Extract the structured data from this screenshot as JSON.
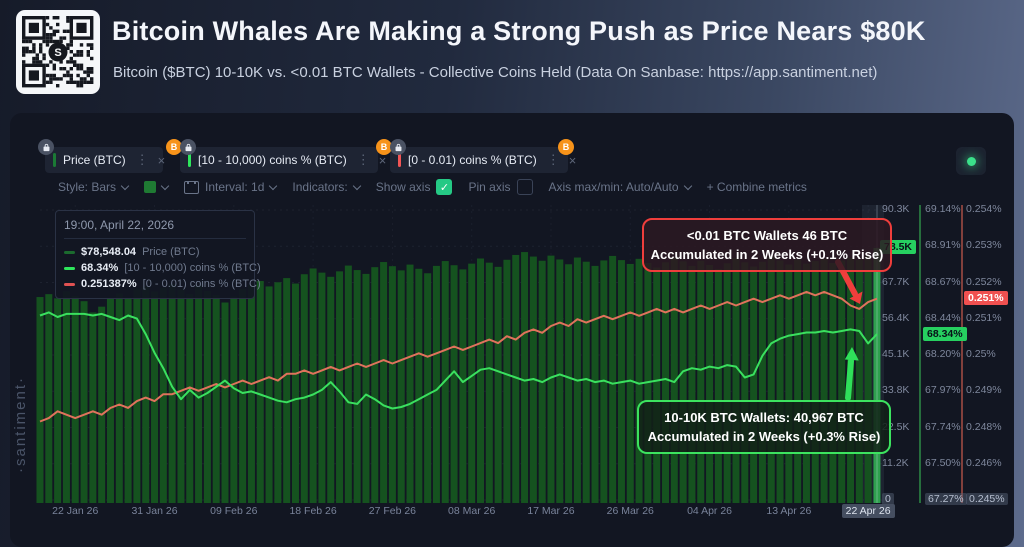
{
  "header": {
    "title": "Bitcoin Whales Are Making a Strong Push as Price Nears $80K",
    "subtitle": "Bitcoin ($BTC) 10-10K vs. <0.01 BTC Wallets - Collective Coins Held (Data On Sanbase: https://app.santiment.net)"
  },
  "icons": {
    "menu_dots": "⋮",
    "close": "×",
    "check": "✓",
    "btc": "B",
    "logo_s": "S"
  },
  "toolbar": {
    "metrics": [
      {
        "label": "Price (BTC)",
        "color": "#1b7a35",
        "locked": true,
        "btc_badge": false
      },
      {
        "label": "[10 - 10,000) coins % (BTC)",
        "color": "#2ee65c",
        "locked": true,
        "btc_badge": true
      },
      {
        "label": "[0 - 0.01) coins % (BTC)",
        "color": "#f25555",
        "locked": true,
        "btc_badge": true
      }
    ]
  },
  "controls": {
    "style_label": "Style: Bars",
    "interval_label": "Interval: 1d",
    "indicators_label": "Indicators:",
    "show_axis_label": "Show axis",
    "pin_axis_label": "Pin axis",
    "axis_maxmin_label": "Axis max/min: Auto/Auto",
    "combine_label": "+ Combine metrics",
    "show_axis_checked": true,
    "pin_axis_checked": false
  },
  "tooltip": {
    "timestamp": "19:00, April 22, 2026",
    "rows": [
      {
        "value": "$78,548.04",
        "label": "Price (BTC)",
        "color": "#1b6b2e"
      },
      {
        "value": "68.34%",
        "label": "[10 - 10,000) coins % (BTC)",
        "color": "#2ee65c"
      },
      {
        "value": "0.251387%",
        "label": "[0 - 0.01) coins % (BTC)",
        "color": "#e05252"
      }
    ]
  },
  "annotations": {
    "red": {
      "line1": "<0.01 BTC Wallets 46 BTC",
      "line2": "Accumulated in 2 Weeks (+0.1% Rise)",
      "color": "#ef3e3c"
    },
    "green": {
      "line1": "10-10K BTC Wallets: 40,967 BTC",
      "line2": "Accumulated in 2 Weeks (+0.3% Rise)",
      "color": "#3ce35f"
    }
  },
  "watermark": "·santiment·",
  "axes": {
    "price": {
      "ticks": [
        "90.3K",
        null,
        "67.7K",
        "56.4K",
        "45.1K",
        "33.8K",
        "22.5K",
        "11.2K",
        "0"
      ],
      "current_label": "78.5K"
    },
    "green": {
      "ticks": [
        "69.14%",
        "68.91%",
        "68.67%",
        "68.44%",
        "68.20%",
        "67.97%",
        "67.74%",
        "67.50%",
        "67.27%"
      ],
      "current_label": "68.34%"
    },
    "red": {
      "ticks": [
        "0.254%",
        "0.253%",
        "0.252%",
        "0.251%",
        "0.25%",
        "0.249%",
        "0.248%",
        "0.246%",
        "0.245%"
      ],
      "current_label": "0.251%"
    }
  },
  "x_axis": {
    "ticks": [
      "22 Jan 26",
      "31 Jan 26",
      "09 Feb 26",
      "18 Feb 26",
      "27 Feb 26",
      "08 Mar 26",
      "17 Mar 26",
      "26 Mar 26",
      "04 Apr 26",
      "13 Apr 26",
      "22 Apr 26"
    ],
    "highlighted_tick": "22 Apr 26"
  },
  "chart_data": {
    "type": "combo",
    "title": "Bitcoin ($BTC) 10-10K vs. <0.01 BTC Wallets - Collective Coins Held",
    "interval": "1d",
    "x_start": "18 Jan 26",
    "x_end": "23 Apr 26",
    "tick_day_offset": 4,
    "tick_day_step": 9,
    "legend_position": "top-left tooltip",
    "grid": "dotted",
    "series": [
      {
        "name": "Price (BTC)",
        "type": "bar",
        "unit": "K USD",
        "ylim": [
          0,
          90.3
        ],
        "color": "#15521f",
        "values": [
          63.2,
          64.1,
          62.8,
          65.0,
          63.5,
          61.9,
          58.4,
          60.2,
          62.7,
          64.3,
          63.0,
          65.8,
          66.4,
          64.9,
          66.1,
          67.3,
          65.5,
          64.2,
          66.8,
          65.1,
          63.9,
          61.5,
          63.3,
          65.7,
          67.0,
          68.2,
          66.5,
          67.8,
          69.1,
          67.4,
          70.3,
          72.1,
          70.8,
          69.5,
          71.2,
          73.0,
          71.6,
          70.4,
          72.5,
          74.1,
          72.8,
          71.5,
          73.3,
          72.0,
          70.6,
          72.9,
          74.4,
          73.1,
          71.8,
          73.6,
          75.2,
          73.9,
          72.6,
          74.8,
          76.3,
          77.2,
          75.8,
          74.5,
          76.1,
          74.9,
          73.4,
          75.5,
          74.2,
          72.9,
          74.6,
          76.0,
          74.7,
          73.5,
          75.1,
          73.8,
          72.4,
          74.0,
          75.6,
          74.3,
          72.9,
          74.5,
          73.2,
          71.9,
          73.7,
          75.3,
          74.0,
          72.7,
          74.2,
          75.8,
          74.6,
          73.3,
          74.9,
          73.6,
          74.4,
          75.0,
          73.8,
          74.6,
          75.4,
          74.8,
          76.2,
          78.5
        ]
      },
      {
        "name": "[10 - 10,000) coins % (BTC)",
        "type": "line",
        "unit": "%",
        "ylim": [
          67.27,
          69.14
        ],
        "color": "#3ae05f",
        "values": [
          68.46,
          68.48,
          68.45,
          68.47,
          68.47,
          68.47,
          68.46,
          68.47,
          68.45,
          68.43,
          68.46,
          68.44,
          68.34,
          68.22,
          68.12,
          68.0,
          67.92,
          67.98,
          67.93,
          67.96,
          68.0,
          68.04,
          67.99,
          67.96,
          67.97,
          67.95,
          67.93,
          67.91,
          67.9,
          67.92,
          67.93,
          67.95,
          67.98,
          68.03,
          67.97,
          67.9,
          67.89,
          67.95,
          67.92,
          67.88,
          67.86,
          67.87,
          67.89,
          67.92,
          67.95,
          67.98,
          68.04,
          68.1,
          68.03,
          68.07,
          68.11,
          68.12,
          68.1,
          68.08,
          68.06,
          68.04,
          68.05,
          68.03,
          68.06,
          68.08,
          68.06,
          68.04,
          68.05,
          68.03,
          68.04,
          68.02,
          68.03,
          68.04,
          68.02,
          68.03,
          68.04,
          68.05,
          68.03,
          68.1,
          68.12,
          68.11,
          68.13,
          68.12,
          68.14,
          68.13,
          68.06,
          68.08,
          68.2,
          68.28,
          68.31,
          68.33,
          68.34,
          68.35,
          68.35,
          68.36,
          68.35,
          68.36,
          68.37,
          68.36,
          68.28,
          68.34
        ]
      },
      {
        "name": "[0 - 0.01) coins % (BTC)",
        "type": "line",
        "unit": "%",
        "ylim": [
          0.2455,
          0.254
        ],
        "color": "#e0735c",
        "values": [
          0.2478,
          0.2479,
          0.2481,
          0.248,
          0.2479,
          0.248,
          0.2481,
          0.248,
          0.2482,
          0.2483,
          0.2482,
          0.2484,
          0.2485,
          0.2484,
          0.2486,
          0.2486,
          0.2487,
          0.2488,
          0.2487,
          0.2488,
          0.2489,
          0.2488,
          0.2489,
          0.249,
          0.2489,
          0.249,
          0.2491,
          0.249,
          0.2492,
          0.2492,
          0.2493,
          0.2492,
          0.2493,
          0.2494,
          0.2493,
          0.2494,
          0.2495,
          0.2494,
          0.2495,
          0.2496,
          0.2495,
          0.2496,
          0.2497,
          0.2498,
          0.2497,
          0.2498,
          0.2499,
          0.25,
          0.2499,
          0.25,
          0.2501,
          0.2502,
          0.2501,
          0.2503,
          0.2502,
          0.2504,
          0.2505,
          0.2504,
          0.2506,
          0.2507,
          0.2506,
          0.2508,
          0.2507,
          0.2508,
          0.2509,
          0.2508,
          0.2509,
          0.251,
          0.2509,
          0.251,
          0.2511,
          0.251,
          0.2511,
          0.251,
          0.2511,
          0.2512,
          0.2511,
          0.2512,
          0.2513,
          0.2512,
          0.2513,
          0.2514,
          0.2513,
          0.2514,
          0.2515,
          0.2514,
          0.2515,
          0.2516,
          0.2515,
          0.2516,
          0.2515,
          0.2514,
          0.2512,
          0.2511,
          0.2513,
          0.2514
        ]
      }
    ],
    "current_values": {
      "price_usd": 78548.04,
      "whales_pct": 68.34,
      "small_wallets_pct": 0.251387
    },
    "highlighted_bar_index": 95
  },
  "colors": {
    "bar": "#15521f",
    "bar_highlight": "#2fa04e",
    "green_axis_line": "#2d8c46",
    "red_axis_line": "#a84f45",
    "crosshair": "rgba(200,215,235,0.35)"
  }
}
